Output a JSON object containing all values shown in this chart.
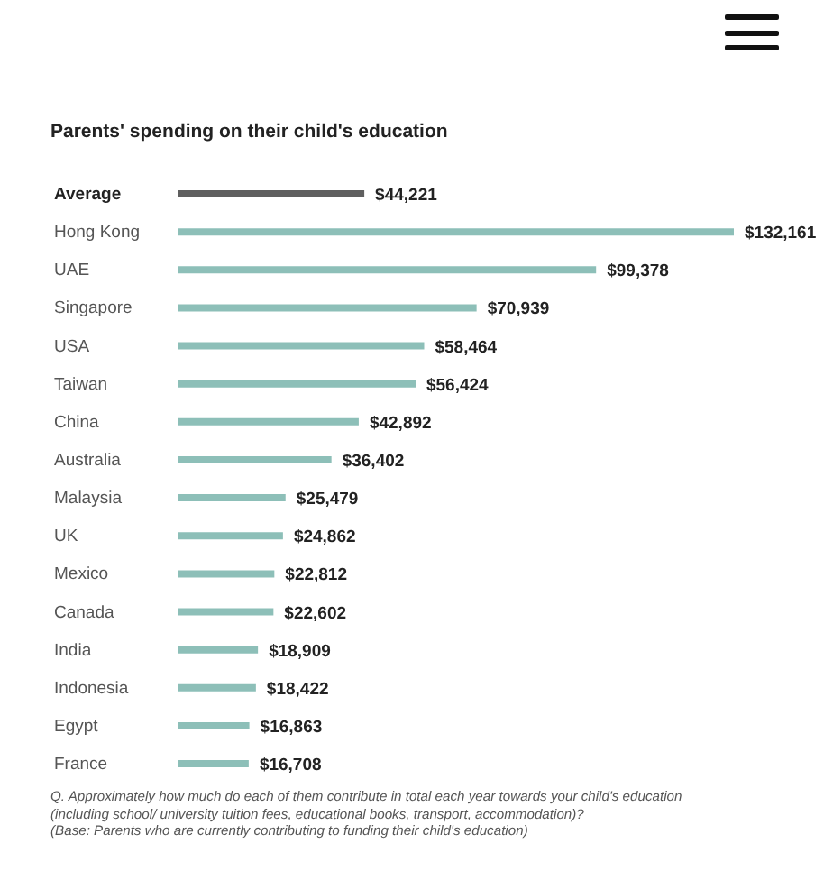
{
  "chart_data": {
    "type": "bar",
    "orientation": "horizontal",
    "title": "Parents' spending on their child's education",
    "categories": [
      "Average",
      "Hong Kong",
      "UAE",
      "Singapore",
      "USA",
      "Taiwan",
      "China",
      "Australia",
      "Malaysia",
      "UK",
      "Mexico",
      "Canada",
      "India",
      "Indonesia",
      "Egypt",
      "France"
    ],
    "values": [
      44221,
      132161,
      99378,
      70939,
      58464,
      56424,
      42892,
      36402,
      25479,
      24862,
      22812,
      22602,
      18909,
      18422,
      16863,
      16708
    ],
    "colors": [
      "#5f5f5f",
      "#8dbfb8",
      "#8dbfb8",
      "#8dbfb8",
      "#8dbfb8",
      "#8dbfb8",
      "#8dbfb8",
      "#8dbfb8",
      "#8dbfb8",
      "#8dbfb8",
      "#8dbfb8",
      "#8dbfb8",
      "#8dbfb8",
      "#8dbfb8",
      "#8dbfb8",
      "#8dbfb8"
    ],
    "value_labels": [
      "$44,221",
      "$132,161",
      "$99,378",
      "$70,939",
      "$58,464",
      "$56,424",
      "$42,892",
      "$36,402",
      "$25,479",
      "$24,862",
      "$22,812",
      "$22,602",
      "$18,909",
      "$18,422",
      "$16,863",
      "$16,708"
    ],
    "tick_labels": "y",
    "annotations": [
      "Q. Approximately how much do each of them contribute in total each year towards your child's education (including school/ university tuition fees, educational books, transport, accommodation)?\n(Base: Parents who are currently contributing to funding their child's education)"
    ]
  }
}
